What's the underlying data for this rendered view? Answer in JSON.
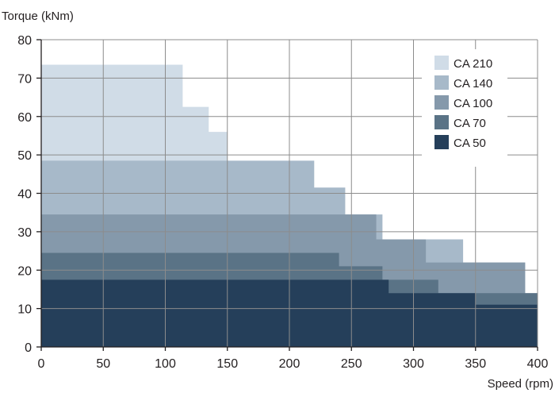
{
  "chart_data": {
    "type": "area",
    "ylabel": "Torque (kNm)",
    "xlabel": "Speed (rpm)",
    "xlim": [
      0,
      400
    ],
    "ylim": [
      0,
      80
    ],
    "xticks": [
      "0",
      "50",
      "100",
      "150",
      "200",
      "250",
      "300",
      "350",
      "400"
    ],
    "yticks": [
      "0",
      "10",
      "20",
      "30",
      "40",
      "50",
      "60",
      "70",
      "80"
    ],
    "grid": true,
    "legend_position": "top-right",
    "step_shape": true,
    "series": [
      {
        "name": "CA 210",
        "color": "#d0dce7",
        "points": [
          [
            0,
            73.5
          ],
          [
            114,
            73.5
          ],
          [
            114,
            62.5
          ],
          [
            135,
            62.5
          ],
          [
            135,
            56
          ],
          [
            150,
            56
          ],
          [
            150,
            0
          ]
        ]
      },
      {
        "name": "CA 140",
        "color": "#a7b9c9",
        "points": [
          [
            0,
            48.5
          ],
          [
            220,
            48.5
          ],
          [
            220,
            41.5
          ],
          [
            245,
            41.5
          ],
          [
            245,
            34.5
          ],
          [
            275,
            34.5
          ],
          [
            275,
            28
          ],
          [
            310,
            28
          ],
          [
            310,
            28
          ],
          [
            340,
            28
          ],
          [
            340,
            22
          ],
          [
            390,
            22
          ],
          [
            390,
            0
          ]
        ]
      },
      {
        "name": "CA 100",
        "color": "#8599ab",
        "points": [
          [
            0,
            34.5
          ],
          [
            270,
            34.5
          ],
          [
            270,
            28
          ],
          [
            310,
            28
          ],
          [
            310,
            22
          ],
          [
            390,
            22
          ],
          [
            390,
            14
          ],
          [
            400,
            14
          ],
          [
            400,
            0
          ]
        ]
      },
      {
        "name": "CA 70",
        "color": "#5a7386",
        "points": [
          [
            0,
            24.5
          ],
          [
            240,
            24.5
          ],
          [
            240,
            21
          ],
          [
            275,
            21
          ],
          [
            275,
            17.5
          ],
          [
            320,
            17.5
          ],
          [
            320,
            14
          ],
          [
            400,
            14
          ],
          [
            400,
            0
          ]
        ]
      },
      {
        "name": "CA 50",
        "color": "#253f5a",
        "points": [
          [
            0,
            17.5
          ],
          [
            280,
            17.5
          ],
          [
            280,
            14
          ],
          [
            350,
            14
          ],
          [
            350,
            11
          ],
          [
            400,
            11
          ],
          [
            400,
            0
          ]
        ]
      }
    ]
  }
}
